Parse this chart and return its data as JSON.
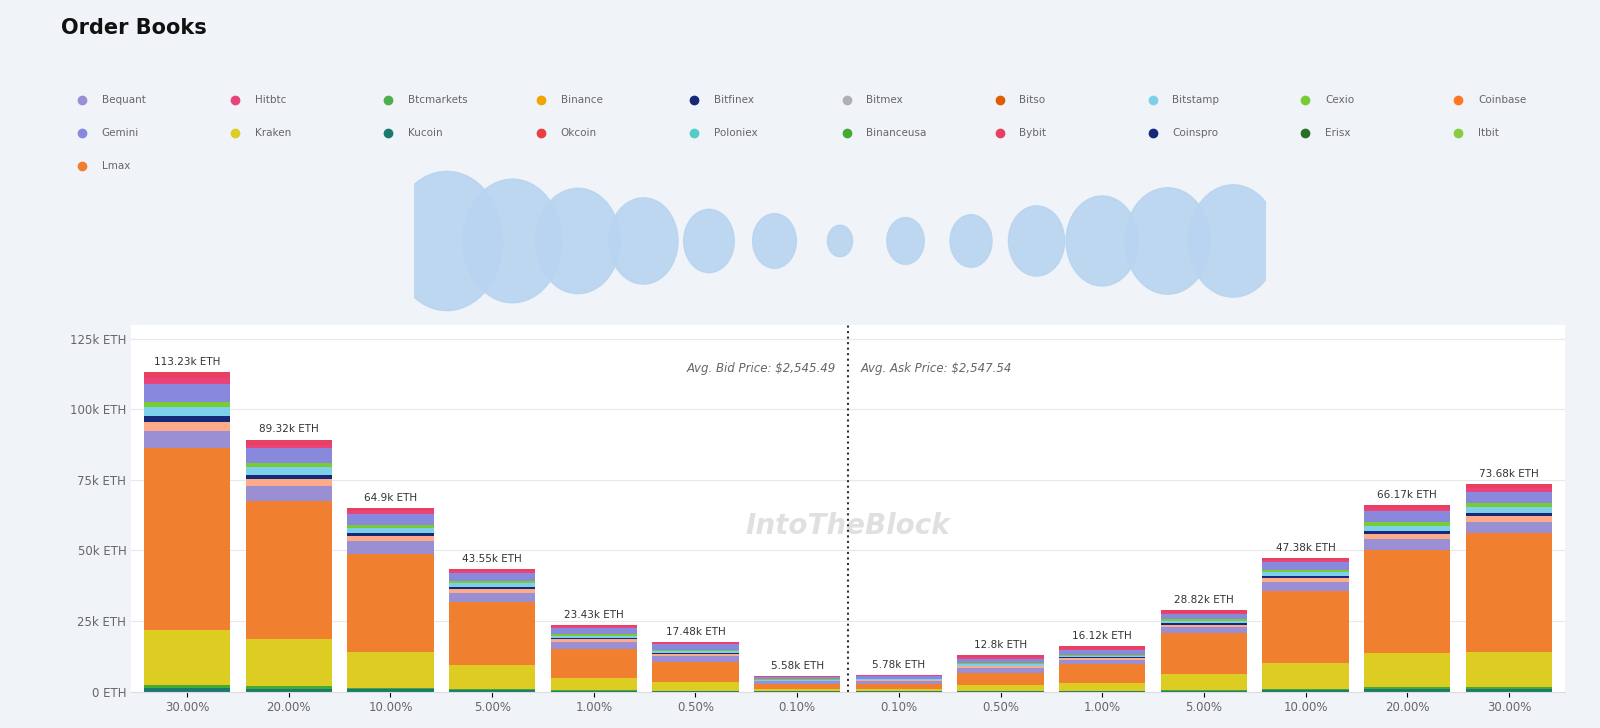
{
  "title": "Order Books",
  "background_color": "#f0f3f8",
  "chart_bg": "#ffffff",
  "avg_bid_price": "Avg. Bid Price: $2,545.49",
  "avg_ask_price": "Avg. Ask Price: $2,547.54",
  "watermark": "IntoTheBlock",
  "bid_labels": [
    "30.00%",
    "20.00%",
    "10.00%",
    "5.00%",
    "1.00%",
    "0.50%",
    "0.10%"
  ],
  "ask_labels": [
    "0.10%",
    "0.50%",
    "1.00%",
    "5.00%",
    "10.00%",
    "20.00%",
    "30.00%"
  ],
  "bid_totals_text": [
    "113.23k ETH",
    "89.32k ETH",
    "64.9k ETH",
    "43.55k ETH",
    "23.43k ETH",
    "17.48k ETH",
    "5.58k ETH"
  ],
  "ask_totals_text": [
    "5.78k ETH",
    "12.8k ETH",
    "16.12k ETH",
    "28.82k ETH",
    "47.38k ETH",
    "66.17k ETH",
    "73.68k ETH"
  ],
  "bid_total_values": [
    113230,
    89320,
    64900,
    43550,
    23430,
    17480,
    5580
  ],
  "ask_total_values": [
    5780,
    12800,
    16120,
    28820,
    47380,
    66170,
    73680
  ],
  "ylim": [
    0,
    130000
  ],
  "yticks": [
    0,
    25000,
    50000,
    75000,
    100000,
    125000
  ],
  "ytick_labels": [
    "0 ETH",
    "25k ETH",
    "50k ETH",
    "75k ETH",
    "100k ETH",
    "125k ETH"
  ],
  "legend_row1": [
    [
      "Bequant",
      "#9b8fd4"
    ],
    [
      "Hitbtc",
      "#e8437a"
    ],
    [
      "Btcmarkets",
      "#4cae4c"
    ],
    [
      "Binance",
      "#f0a500"
    ],
    [
      "Bitfinex",
      "#162878"
    ],
    [
      "Bitmex",
      "#b0b0b0"
    ],
    [
      "Bitso",
      "#e05c00"
    ],
    [
      "Bitstamp",
      "#7ecfea"
    ],
    [
      "Cexio",
      "#77cc33"
    ],
    [
      "Coinbase",
      "#ff7722"
    ]
  ],
  "legend_row2": [
    [
      "Gemini",
      "#8888dd"
    ],
    [
      "Kraken",
      "#ddcc22"
    ],
    [
      "Kucoin",
      "#1a7a6e"
    ],
    [
      "Okcoin",
      "#e84040"
    ],
    [
      "Poloniex",
      "#55cccc"
    ],
    [
      "Binanceusa",
      "#44aa33"
    ],
    [
      "Bybit",
      "#e84060"
    ],
    [
      "Coinspro",
      "#162878"
    ],
    [
      "Erisx",
      "#2a6e2a"
    ],
    [
      "Itbit",
      "#88cc44"
    ]
  ],
  "legend_row3": [
    [
      "Lmax",
      "#f08030"
    ]
  ],
  "bubble_sizes": [
    113230,
    89320,
    64900,
    43550,
    23430,
    17480,
    5780,
    12800,
    16120,
    28820,
    47380,
    66170,
    73680
  ],
  "bubble_color": "#b8d4f0",
  "layer_colors": [
    "#1a7a6e",
    "#44aa33",
    "#ddcc22",
    "#f08030",
    "#9b8fd4",
    "#ffaa88",
    "#162878",
    "#7ecfea",
    "#77cc33",
    "#8888dd",
    "#e8437a",
    "#e84060"
  ],
  "bid_proportions": [
    [
      0.012,
      0.012,
      0.012,
      0.012,
      0.012,
      0.012,
      0.012
    ],
    [
      0.01,
      0.01,
      0.01,
      0.01,
      0.01,
      0.01,
      0.01
    ],
    [
      0.17,
      0.185,
      0.195,
      0.195,
      0.185,
      0.165,
      0.145
    ],
    [
      0.57,
      0.55,
      0.535,
      0.51,
      0.43,
      0.415,
      0.32
    ],
    [
      0.055,
      0.06,
      0.07,
      0.075,
      0.11,
      0.12,
      0.16
    ],
    [
      0.028,
      0.028,
      0.028,
      0.032,
      0.042,
      0.038,
      0.038
    ],
    [
      0.016,
      0.016,
      0.016,
      0.016,
      0.016,
      0.016,
      0.016
    ],
    [
      0.028,
      0.028,
      0.028,
      0.03,
      0.042,
      0.042,
      0.062
    ],
    [
      0.018,
      0.018,
      0.018,
      0.018,
      0.018,
      0.018,
      0.018
    ],
    [
      0.055,
      0.06,
      0.06,
      0.065,
      0.09,
      0.12,
      0.165
    ],
    [
      0.018,
      0.013,
      0.013,
      0.017,
      0.03,
      0.034,
      0.044
    ],
    [
      0.02,
      0.02,
      0.015,
      0.02,
      0.015,
      0.01,
      0.01
    ]
  ],
  "ask_proportions": [
    [
      0.012,
      0.012,
      0.012,
      0.012,
      0.012,
      0.012,
      0.012
    ],
    [
      0.01,
      0.01,
      0.01,
      0.01,
      0.01,
      0.01,
      0.01
    ],
    [
      0.145,
      0.155,
      0.175,
      0.195,
      0.195,
      0.185,
      0.17
    ],
    [
      0.32,
      0.35,
      0.4,
      0.5,
      0.535,
      0.55,
      0.57
    ],
    [
      0.16,
      0.13,
      0.105,
      0.075,
      0.07,
      0.06,
      0.055
    ],
    [
      0.038,
      0.038,
      0.032,
      0.032,
      0.028,
      0.028,
      0.028
    ],
    [
      0.016,
      0.016,
      0.016,
      0.016,
      0.016,
      0.016,
      0.016
    ],
    [
      0.062,
      0.052,
      0.042,
      0.03,
      0.028,
      0.028,
      0.028
    ],
    [
      0.018,
      0.018,
      0.018,
      0.018,
      0.018,
      0.018,
      0.018
    ],
    [
      0.165,
      0.13,
      0.1,
      0.065,
      0.06,
      0.06,
      0.055
    ],
    [
      0.044,
      0.039,
      0.03,
      0.017,
      0.013,
      0.013,
      0.018
    ],
    [
      0.01,
      0.05,
      0.06,
      0.03,
      0.015,
      0.02,
      0.02
    ]
  ]
}
